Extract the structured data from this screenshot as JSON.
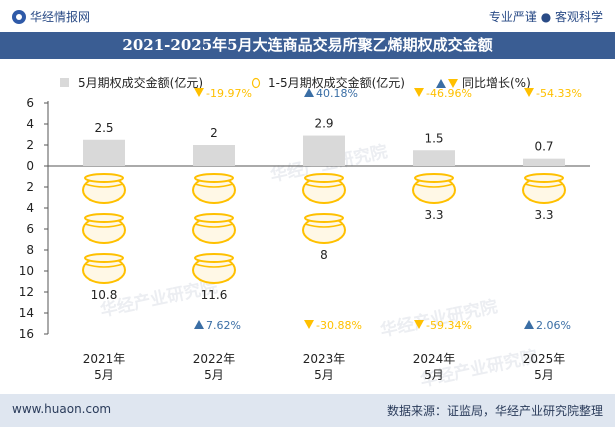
{
  "header": {
    "brand": "华经情报网",
    "slogan": "专业严谨 ● 客观科学"
  },
  "footer": {
    "website": "www.huaon.com",
    "source": "数据来源：证监局，华经产业研究院整理"
  },
  "watermark": "华经产业研究院",
  "colors": {
    "bar": "#d9d9d9",
    "up": "#3a6ea5",
    "down": "#ffc000",
    "title_bg": "#3a5d93"
  },
  "chart_data": {
    "type": "bar",
    "title": "2021-2025年5月大连商品交易所聚乙烯期权成交金额",
    "categories": [
      "2021年\n5月",
      "2022年\n5月",
      "2023年\n5月",
      "2024年\n5月",
      "2025年\n5月"
    ],
    "legend": [
      "5月期权成交金额(亿元)",
      "1-5月期权成交金额(亿元)",
      "同比增长(%)"
    ],
    "series": [
      {
        "name": "5月期权成交金额(亿元)",
        "values": [
          2.5,
          2,
          2.9,
          1.5,
          0.7
        ]
      },
      {
        "name": "1-5月期权成交金额(亿元)",
        "values": [
          10.8,
          11.6,
          8,
          3.3,
          3.3
        ]
      }
    ],
    "yoy_monthly": [
      {
        "label": "",
        "direction": ""
      },
      {
        "label": "-19.97%",
        "direction": "down"
      },
      {
        "label": "40.18%",
        "direction": "up"
      },
      {
        "label": "-46.96%",
        "direction": "down"
      },
      {
        "label": "-54.33%",
        "direction": "down"
      }
    ],
    "yoy_cumulative": [
      {
        "label": "",
        "direction": ""
      },
      {
        "label": "7.62%",
        "direction": "up"
      },
      {
        "label": "-30.88%",
        "direction": "down"
      },
      {
        "label": "-59.34%",
        "direction": "down"
      },
      {
        "label": "2.06%",
        "direction": "up"
      }
    ],
    "y_ticks_upper": [
      0,
      2,
      4,
      6
    ],
    "y_ticks_lower": [
      2,
      4,
      6,
      8,
      10,
      12,
      14,
      16
    ],
    "ylim_upper": [
      0,
      6
    ],
    "ylim_lower": [
      0,
      16
    ]
  }
}
